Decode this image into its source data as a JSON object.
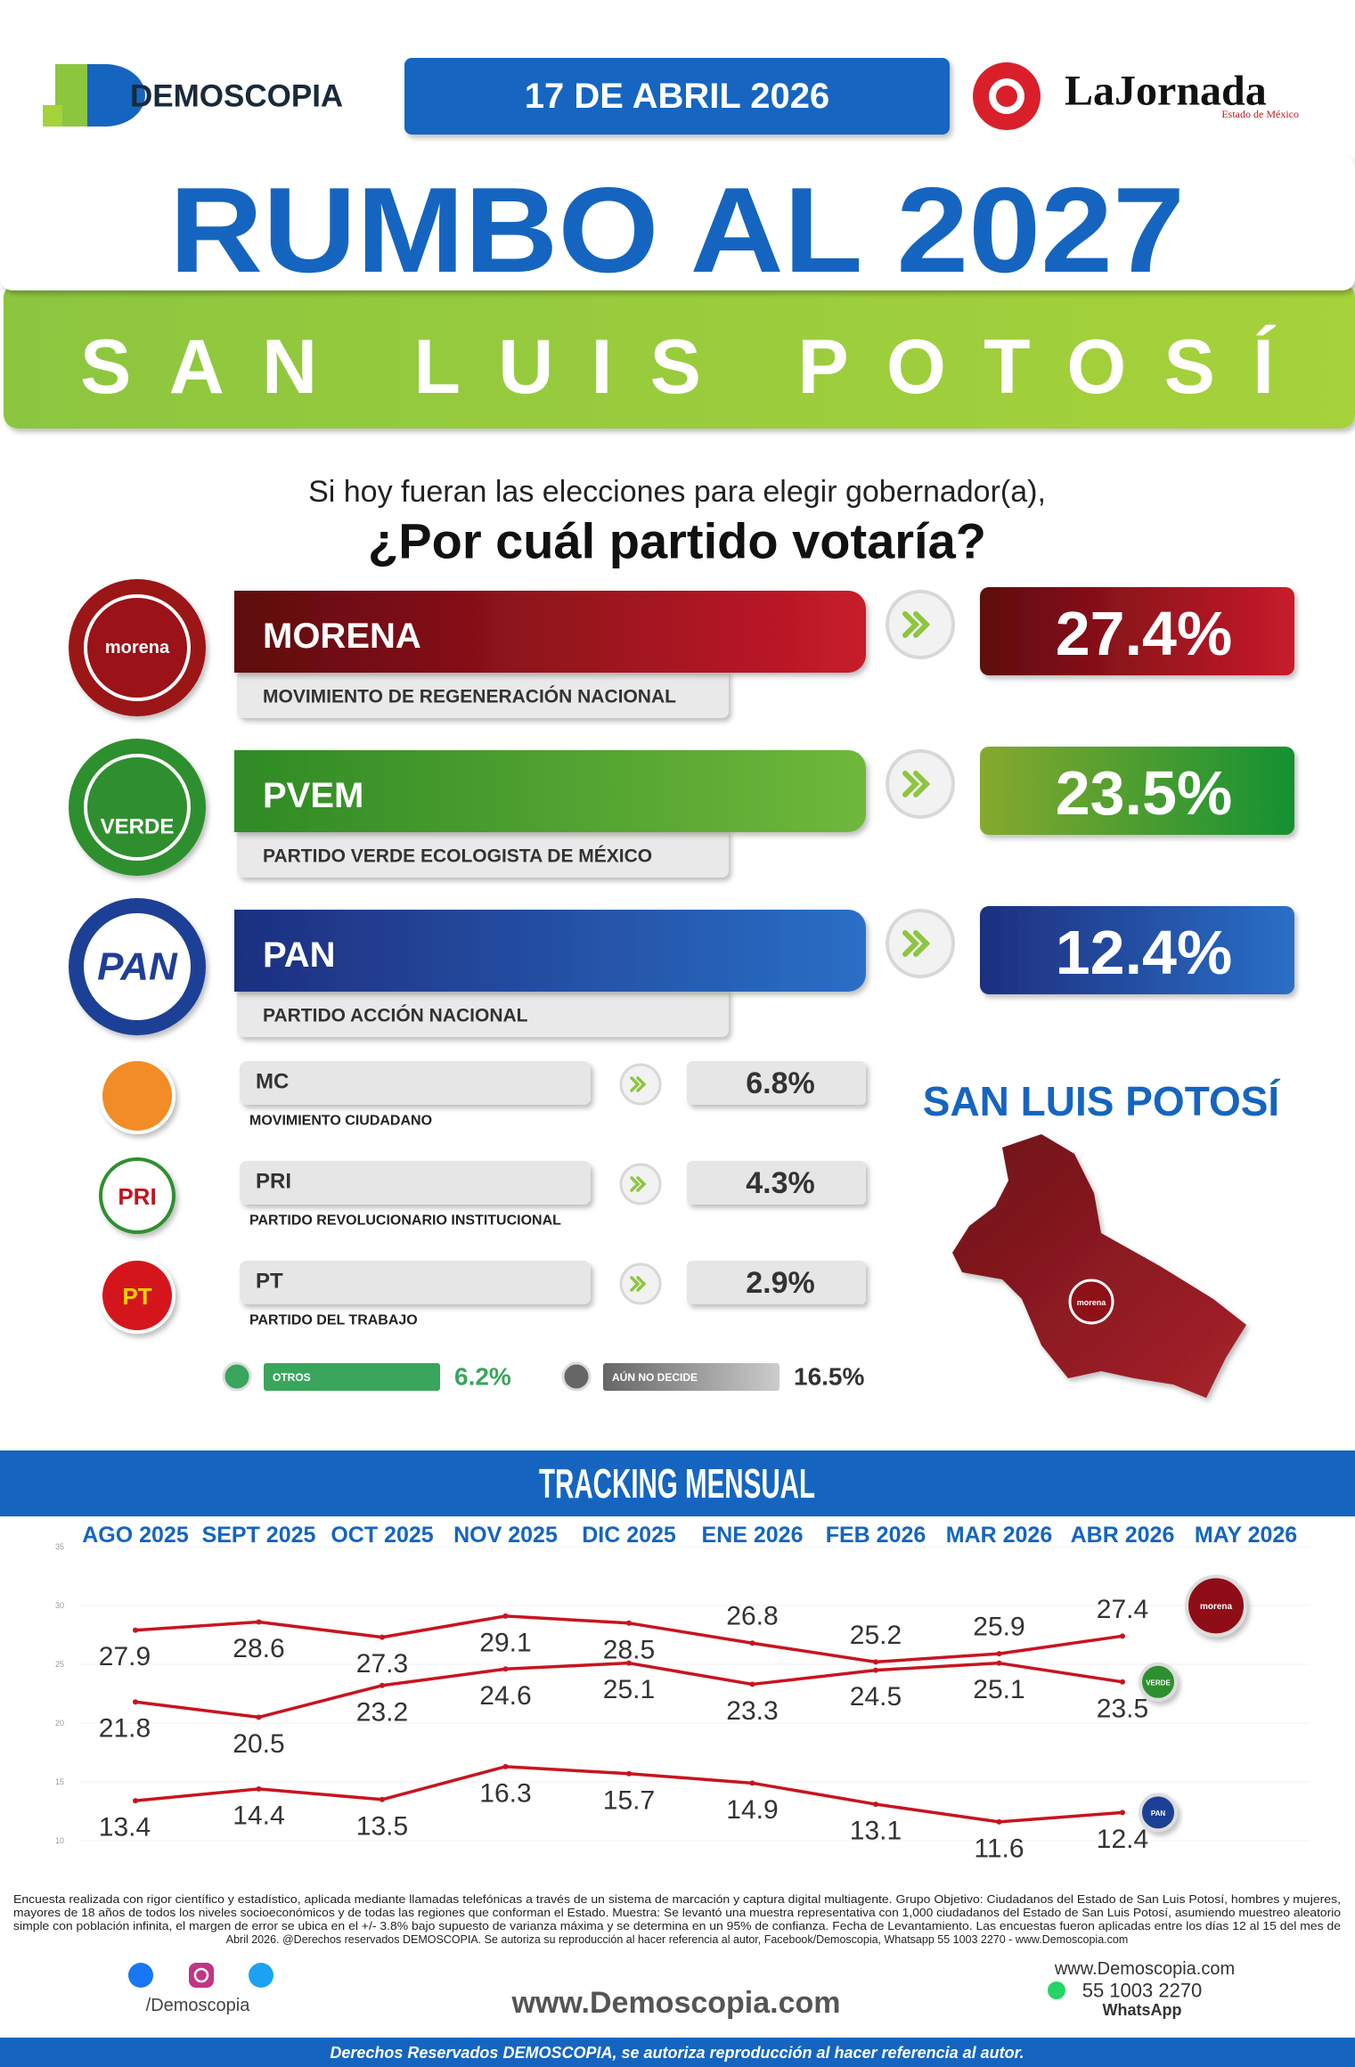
{
  "header": {
    "brand": "DEMOSCOPIA",
    "date": "17 DE ABRIL 2026",
    "partner": "LaJornada",
    "partner_sub": "Estado de México"
  },
  "title": "RUMBO AL 2027",
  "subtitle": "SAN LUIS POTOSÍ",
  "question": {
    "line1": "Si hoy fueran las elecciones para elegir gobernador(a),",
    "line2": "¿Por cuál partido votaría?"
  },
  "parties": [
    {
      "logo": "morena",
      "name": "MORENA",
      "full": "MOVIMIENTO DE REGENERACIÓN NACIONAL",
      "value": "27.4%"
    },
    {
      "logo": "VERDE",
      "name": "PVEM",
      "full": "PARTIDO VERDE ECOLOGISTA DE MÉXICO",
      "value": "23.5%"
    },
    {
      "logo": "PAN",
      "name": "PAN",
      "full": "PARTIDO ACCIÓN NACIONAL",
      "value": "12.4%"
    },
    {
      "name": "MC",
      "full": "MOVIMIENTO CIUDADANO",
      "value": "6.8%"
    },
    {
      "logo": "PRI",
      "name": "PRI",
      "full": "PARTIDO REVOLUCIONARIO INSTITUCIONAL",
      "value": "4.3%"
    },
    {
      "logo": "PT",
      "name": "PT",
      "full": "PARTIDO DEL TRABAJO",
      "value": "2.9%"
    }
  ],
  "others": [
    {
      "label": "OTROS",
      "value": "6.2%"
    },
    {
      "label": "AÚN NO DECIDE",
      "value": "16.5%"
    }
  ],
  "map": {
    "title": "SAN LUIS POTOSÍ",
    "label": "morena"
  },
  "chart_data": {
    "type": "line",
    "title": "TRACKING MENSUAL",
    "categories": [
      "AGO 2025",
      "SEPT 2025",
      "OCT 2025",
      "NOV 2025",
      "DIC 2025",
      "ENE 2026",
      "FEB 2026",
      "MAR 2026",
      "ABR 2026",
      "MAY 2026"
    ],
    "series": [
      {
        "name": "morena",
        "color": "#c8141e",
        "badge_color": "#8e1118",
        "values": [
          27.9,
          28.6,
          27.3,
          29.1,
          28.5,
          26.8,
          25.2,
          25.9,
          27.4,
          null
        ]
      },
      {
        "name": "VERDE",
        "color": "#c8141e",
        "badge_color": "#2f8f2f",
        "values": [
          21.8,
          20.5,
          23.2,
          24.6,
          25.1,
          23.3,
          24.5,
          25.1,
          23.5,
          null
        ]
      },
      {
        "name": "PAN",
        "color": "#c8141e",
        "badge_color": "#1f3f95",
        "values": [
          13.4,
          14.4,
          13.5,
          16.3,
          15.7,
          14.9,
          13.1,
          11.6,
          12.4,
          null
        ]
      }
    ],
    "ylim": [
      10,
      35
    ],
    "yticks": [
      10,
      15,
      20,
      25,
      30,
      35
    ],
    "grid": true
  },
  "footnote": [
    "Encuesta realizada con rigor científico y estadístico, aplicada mediante llamadas telefónicas a través de un sistema de marcación y captura digital multiagente. Grupo Objetivo: Ciudadanos del Estado de San Luis Potosí, hombres y mujeres,",
    "mayores de 18 años de todos los niveles socioeconómicos y de todas las regiones que conforman el Estado. Muestra: Se levantó una muestra representativa con 1,000 ciudadanos del Estado de San Luis Potosí, asumiendo muestreo aleatorio",
    "simple con población infinita, el margen de error se ubica en el +/- 3.8% bajo supuesto de varianza máxima y se determina en un 95% de confianza. Fecha de Levantamiento. Las encuestas fueron aplicadas entre los días 12 al 15 del mes de",
    "Abril 2026. @Derechos reservados DEMOSCOPIA. Se autoriza su reproducción al hacer referencia al autor, Facebook/Demoscopia, Whatsapp 55 1003 2270 - www.Demoscopia.com"
  ],
  "footer": {
    "handle": "/Demoscopia",
    "website": "www.Demoscopia.com",
    "contact_web": "www.Demoscopia.com",
    "phone": "55 1003 2270",
    "phone_label": "WhatsApp",
    "rights": "Derechos Reservados DEMOSCOPIA, se autoriza reproducción al hacer referencia al autor."
  }
}
